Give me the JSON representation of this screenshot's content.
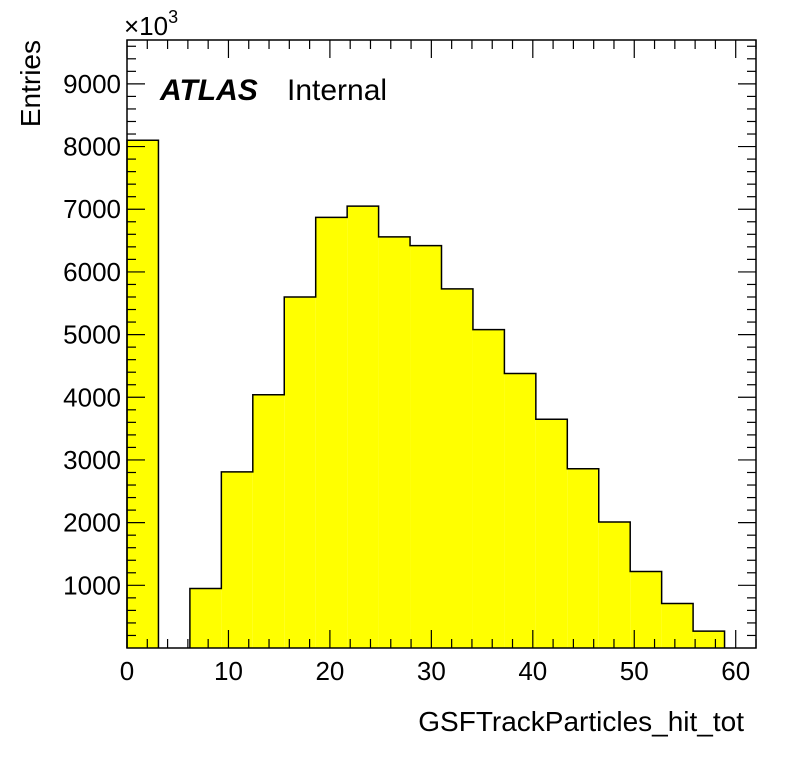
{
  "chart_data": {
    "type": "bar",
    "histogram": true,
    "title": "",
    "xlabel": "GSFTrackParticles_hit_tot",
    "ylabel": "Entries",
    "y_multiplier_label": "×10",
    "y_multiplier_exponent": "3",
    "label_bold": "ATLAS",
    "label_status": "Internal",
    "xlim": [
      0,
      62
    ],
    "ylim": [
      0,
      9700
    ],
    "x_ticks": [
      "0",
      "10",
      "20",
      "30",
      "40",
      "50",
      "60"
    ],
    "y_ticks": [
      "1000",
      "2000",
      "3000",
      "4000",
      "5000",
      "6000",
      "7000",
      "8000",
      "9000"
    ],
    "bins": [
      {
        "x0": 0.0,
        "x1": 3.1,
        "value": 8100
      },
      {
        "x0": 3.1,
        "x1": 6.2,
        "value": 0
      },
      {
        "x0": 6.2,
        "x1": 9.3,
        "value": 950
      },
      {
        "x0": 9.3,
        "x1": 12.4,
        "value": 2810
      },
      {
        "x0": 12.4,
        "x1": 15.5,
        "value": 4040
      },
      {
        "x0": 15.5,
        "x1": 18.6,
        "value": 5600
      },
      {
        "x0": 18.6,
        "x1": 21.7,
        "value": 6870
      },
      {
        "x0": 21.7,
        "x1": 24.8,
        "value": 7050
      },
      {
        "x0": 24.8,
        "x1": 27.9,
        "value": 6560
      },
      {
        "x0": 27.9,
        "x1": 31.0,
        "value": 6420
      },
      {
        "x0": 31.0,
        "x1": 34.1,
        "value": 5730
      },
      {
        "x0": 34.1,
        "x1": 37.2,
        "value": 5080
      },
      {
        "x0": 37.2,
        "x1": 40.3,
        "value": 4380
      },
      {
        "x0": 40.3,
        "x1": 43.4,
        "value": 3650
      },
      {
        "x0": 43.4,
        "x1": 46.5,
        "value": 2860
      },
      {
        "x0": 46.5,
        "x1": 49.6,
        "value": 2010
      },
      {
        "x0": 49.6,
        "x1": 52.7,
        "value": 1220
      },
      {
        "x0": 52.7,
        "x1": 55.8,
        "value": 710
      },
      {
        "x0": 55.8,
        "x1": 58.9,
        "value": 270
      }
    ],
    "colors": {
      "fill": "#ffff00",
      "line": "#000000"
    },
    "grid": false,
    "legend": "none"
  }
}
